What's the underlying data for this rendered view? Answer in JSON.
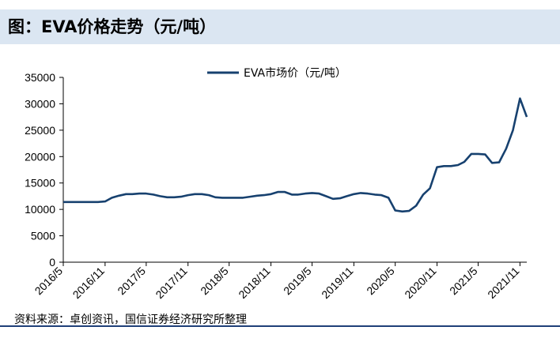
{
  "page": {
    "title": "图：EVA价格走势（元/吨）",
    "source": "资料来源：卓创资讯，国信证券经济研究所整理"
  },
  "colors": {
    "line": "#17416f",
    "title_band": "#dbe6f2",
    "axis": "#000000"
  },
  "chart_data": {
    "type": "line",
    "title": "",
    "xlabel": "",
    "ylabel": "",
    "ylim": [
      0,
      35000
    ],
    "y_ticks": [
      0,
      5000,
      10000,
      15000,
      20000,
      25000,
      30000,
      35000
    ],
    "y_tick_labels": [
      "0",
      "5000",
      "10000",
      "15000",
      "20000",
      "25000",
      "30000",
      "35000"
    ],
    "x_tick_labels": [
      "2016/5",
      "2016/11",
      "2017/5",
      "2017/11",
      "2018/5",
      "2018/11",
      "2019/5",
      "2019/11",
      "2020/5",
      "2020/11",
      "2021/5",
      "2021/11"
    ],
    "legend_position": "top-center",
    "series": [
      {
        "name": "EVA市场价（元/吨）",
        "x": [
          "2016-05-01",
          "2016-06-01",
          "2016-07-01",
          "2016-08-01",
          "2016-09-01",
          "2016-10-01",
          "2016-11-01",
          "2016-12-01",
          "2017-01-01",
          "2017-02-01",
          "2017-03-01",
          "2017-04-01",
          "2017-05-01",
          "2017-06-01",
          "2017-07-01",
          "2017-08-01",
          "2017-09-01",
          "2017-10-01",
          "2017-11-01",
          "2017-12-01",
          "2018-01-01",
          "2018-02-01",
          "2018-03-01",
          "2018-04-01",
          "2018-05-01",
          "2018-06-01",
          "2018-07-01",
          "2018-08-01",
          "2018-09-01",
          "2018-10-01",
          "2018-11-01",
          "2018-12-01",
          "2019-01-01",
          "2019-02-01",
          "2019-03-01",
          "2019-04-01",
          "2019-05-01",
          "2019-06-01",
          "2019-07-01",
          "2019-08-01",
          "2019-09-01",
          "2019-10-01",
          "2019-11-01",
          "2019-12-01",
          "2020-01-01",
          "2020-02-01",
          "2020-03-01",
          "2020-04-01",
          "2020-05-01",
          "2020-06-01",
          "2020-07-01",
          "2020-08-01",
          "2020-09-01",
          "2020-10-01",
          "2020-11-01",
          "2020-12-01",
          "2021-01-01",
          "2021-02-01",
          "2021-03-01",
          "2021-04-01",
          "2021-05-01",
          "2021-06-01",
          "2021-07-01",
          "2021-08-01",
          "2021-09-01",
          "2021-10-01",
          "2021-11-01",
          "2021-12-01"
        ],
        "values": [
          11400,
          11400,
          11400,
          11400,
          11400,
          11400,
          11500,
          12200,
          12600,
          12900,
          12900,
          13000,
          13000,
          12800,
          12500,
          12300,
          12300,
          12400,
          12700,
          12900,
          12900,
          12700,
          12300,
          12200,
          12200,
          12200,
          12200,
          12400,
          12600,
          12700,
          12900,
          13300,
          13300,
          12800,
          12800,
          13000,
          13100,
          13000,
          12500,
          12000,
          12100,
          12500,
          12900,
          13100,
          13000,
          12800,
          12700,
          12200,
          9800,
          9600,
          9700,
          10700,
          12800,
          14000,
          18000,
          18200,
          18200,
          18400,
          19000,
          20500,
          20500,
          20400,
          18800,
          18900,
          21500,
          25000,
          31000,
          27500
        ]
      }
    ]
  }
}
